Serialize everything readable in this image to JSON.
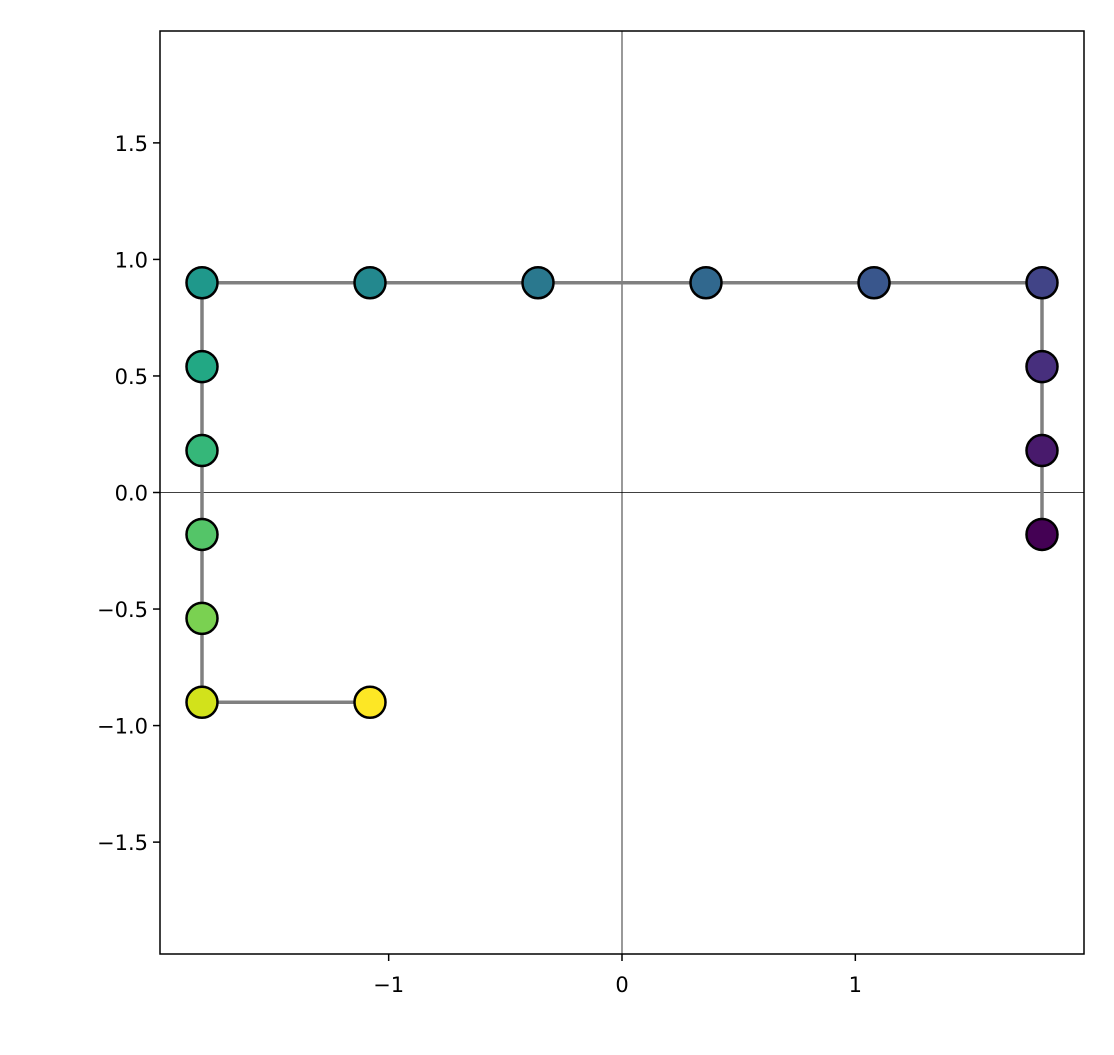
{
  "chart_data": {
    "type": "line",
    "x": [
      1.8,
      1.8,
      1.8,
      1.8,
      1.08,
      0.36,
      -0.36,
      -1.08,
      -1.8,
      -1.8,
      -1.8,
      -1.8,
      -1.8,
      -1.8,
      -1.08
    ],
    "values": [
      -0.18,
      0.18,
      0.54,
      0.9,
      0.9,
      0.9,
      0.9,
      0.9,
      0.9,
      0.54,
      0.18,
      -0.18,
      -0.54,
      -0.9,
      -0.9
    ],
    "point_colors": [
      "#440154",
      "#481a6c",
      "#472f7d",
      "#414487",
      "#39568c",
      "#31688e",
      "#2a788e",
      "#23888e",
      "#1f988b",
      "#22a884",
      "#35b779",
      "#54c568",
      "#7ad151",
      "#d2e21b",
      "#fde725"
    ],
    "line_color": "#808080",
    "xlim": [
      -1.98,
      1.98
    ],
    "ylim": [
      -1.98,
      1.98
    ],
    "xticks": [
      {
        "value": -1,
        "label": "−1"
      },
      0,
      1
    ],
    "yticks": [
      {
        "value": -1.5,
        "label": "−1.5"
      },
      {
        "value": -1,
        "label": "−1.0"
      },
      {
        "value": -0.5,
        "label": "−0.5"
      },
      {
        "value": 0,
        "label": "0.0"
      },
      0.5,
      {
        "value": 1,
        "label": "1.0"
      },
      1.5
    ],
    "zero_lines": true
  }
}
